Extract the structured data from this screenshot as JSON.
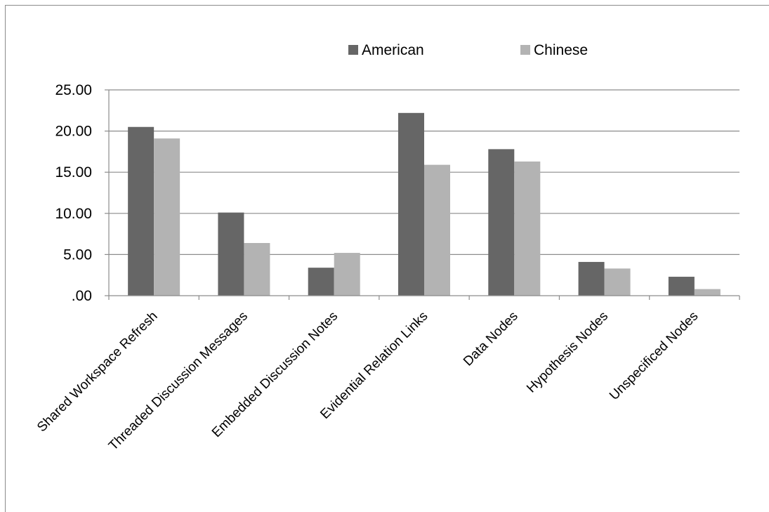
{
  "chart_data": {
    "type": "bar",
    "categories": [
      "Shared Workspace Refresh",
      "Threaded Discussion Messages",
      "Embedded Discussion Notes",
      "Evidential Relation Links",
      "Data Nodes",
      "Hypothesis Nodes",
      "Unspecificed Nodes"
    ],
    "series": [
      {
        "name": "American",
        "color": "#666666",
        "values": [
          20.5,
          10.1,
          3.4,
          22.2,
          17.8,
          4.1,
          2.3
        ]
      },
      {
        "name": "Chinese",
        "color": "#b3b3b3",
        "values": [
          19.1,
          6.4,
          5.2,
          15.9,
          16.3,
          3.3,
          0.8
        ]
      }
    ],
    "y_ticks": [
      ".00",
      "5.00",
      "10.00",
      "15.00",
      "20.00",
      "25.00"
    ],
    "ylim": [
      0,
      25
    ],
    "grid": true,
    "legend_position": "top-right",
    "title": "",
    "xlabel": "",
    "ylabel": ""
  }
}
